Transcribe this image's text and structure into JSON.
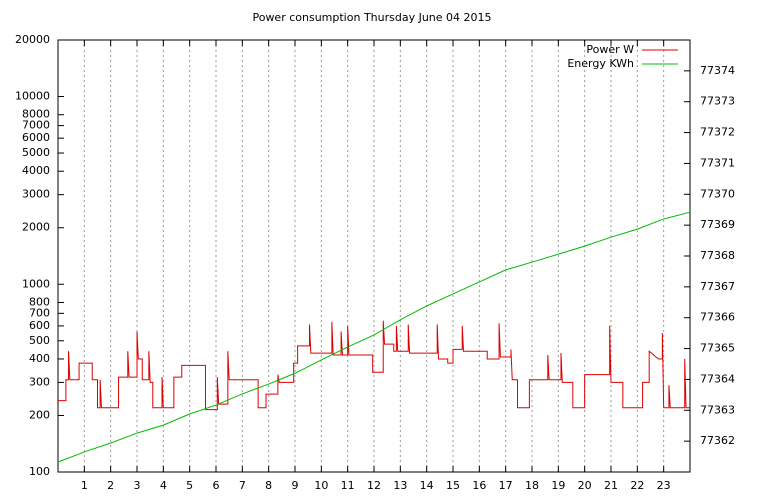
{
  "chart_data": {
    "type": "line",
    "title": "Power consumption Thursday June 04 2015",
    "xlim": [
      0,
      24
    ],
    "xticks": [
      1,
      2,
      3,
      4,
      5,
      6,
      7,
      8,
      9,
      10,
      11,
      12,
      13,
      14,
      15,
      16,
      17,
      18,
      19,
      20,
      21,
      22,
      23
    ],
    "ylim": [
      100,
      20000
    ],
    "ylog": true,
    "yticks": [
      100,
      200,
      300,
      400,
      500,
      600,
      700,
      800,
      1000,
      2000,
      3000,
      4000,
      5000,
      6000,
      7000,
      8000,
      10000,
      20000
    ],
    "y2lim": [
      77361,
      77375
    ],
    "y2ticks": [
      77362,
      77363,
      77364,
      77365,
      77366,
      77367,
      77368,
      77369,
      77370,
      77371,
      77372,
      77373,
      77374
    ],
    "grid": "x",
    "legend": "top-right",
    "series": [
      {
        "name": "Power W",
        "color": "#dd0000",
        "x": [
          0,
          0.3,
          0.3,
          0.4,
          0.4,
          0.45,
          0.8,
          0.8,
          1.3,
          1.3,
          1.5,
          1.5,
          1.6,
          1.6,
          1.65,
          2.3,
          2.3,
          2.65,
          2.65,
          2.7,
          3.0,
          3.0,
          3.05,
          3.2,
          3.2,
          3.45,
          3.45,
          3.5,
          3.6,
          3.6,
          3.95,
          3.95,
          4.0,
          4.4,
          4.4,
          4.7,
          4.7,
          5.6,
          5.6,
          6.05,
          6.05,
          6.1,
          6.45,
          6.45,
          6.5,
          7.6,
          7.6,
          7.9,
          7.9,
          8.35,
          8.35,
          8.4,
          8.95,
          8.95,
          9.1,
          9.1,
          9.55,
          9.55,
          9.6,
          10.4,
          10.4,
          10.45,
          10.75,
          10.75,
          10.8,
          11.0,
          11.0,
          11.05,
          11.95,
          11.95,
          12.35,
          12.35,
          12.4,
          12.75,
          12.75,
          12.85,
          12.85,
          12.9,
          13.3,
          13.3,
          13.35,
          14.4,
          14.4,
          14.45,
          14.8,
          14.8,
          15.0,
          15.0,
          15.35,
          15.35,
          15.4,
          16.3,
          16.3,
          16.75,
          16.75,
          16.8,
          17.2,
          17.2,
          17.25,
          17.45,
          17.45,
          17.9,
          17.9,
          18.6,
          18.6,
          18.65,
          19.1,
          19.1,
          19.15,
          19.55,
          19.55,
          20.0,
          20.0,
          20.95,
          20.95,
          21.0,
          21.45,
          21.45,
          22.2,
          22.2,
          22.45,
          22.45,
          22.8,
          22.95,
          22.95,
          23.0,
          23.2,
          23.2,
          23.25,
          23.8,
          23.8,
          23.85,
          24
        ],
        "values": [
          240,
          240,
          310,
          310,
          440,
          310,
          310,
          380,
          380,
          310,
          310,
          220,
          220,
          310,
          220,
          220,
          320,
          320,
          440,
          320,
          320,
          560,
          400,
          400,
          310,
          310,
          440,
          300,
          300,
          220,
          220,
          320,
          220,
          220,
          320,
          320,
          370,
          370,
          215,
          215,
          320,
          230,
          230,
          440,
          310,
          310,
          220,
          220,
          260,
          260,
          330,
          300,
          300,
          380,
          380,
          470,
          470,
          610,
          430,
          430,
          630,
          420,
          420,
          560,
          420,
          420,
          600,
          420,
          420,
          340,
          340,
          640,
          480,
          480,
          440,
          440,
          600,
          440,
          440,
          610,
          430,
          430,
          610,
          400,
          400,
          380,
          380,
          450,
          450,
          600,
          440,
          440,
          400,
          400,
          620,
          410,
          410,
          450,
          310,
          310,
          220,
          220,
          310,
          310,
          420,
          310,
          310,
          430,
          300,
          300,
          220,
          220,
          330,
          330,
          600,
          300,
          300,
          220,
          220,
          300,
          300,
          440,
          400,
          400,
          550,
          220,
          220,
          290,
          220,
          220,
          400,
          220,
          220
        ]
      },
      {
        "name": "Energy KWh",
        "color": "#00bb00",
        "axis": "y2",
        "x": [
          0,
          1,
          2,
          3,
          4,
          5,
          6,
          7,
          8,
          9,
          10,
          11,
          12,
          13,
          14,
          15,
          16,
          17,
          18,
          19,
          20,
          21,
          22,
          23,
          24
        ],
        "values": [
          77361.32,
          77361.65,
          77361.94,
          77362.26,
          77362.52,
          77362.88,
          77363.17,
          77363.53,
          77363.85,
          77364.2,
          77364.63,
          77365.05,
          77365.44,
          77365.93,
          77366.38,
          77366.77,
          77367.16,
          77367.55,
          77367.8,
          77368.06,
          77368.32,
          77368.61,
          77368.87,
          77369.2,
          77369.42
        ]
      }
    ]
  }
}
